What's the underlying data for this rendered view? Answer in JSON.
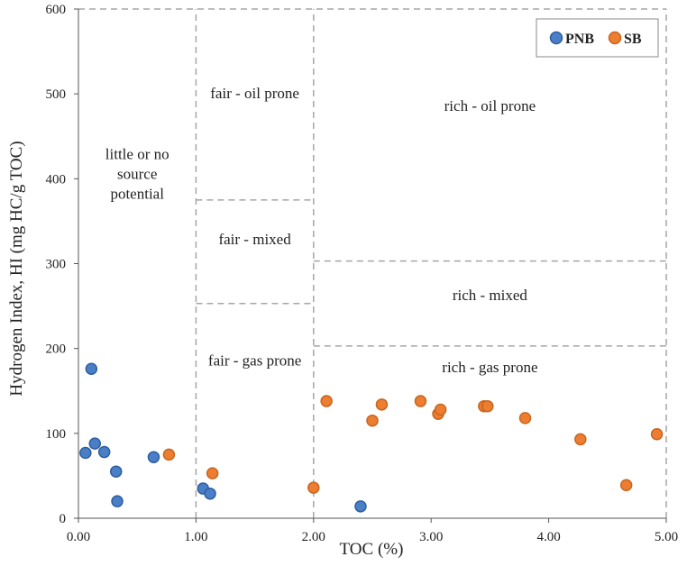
{
  "chart_data": {
    "type": "scatter",
    "xlabel": "TOC (%)",
    "ylabel": "Hydrogen Index, HI (mg HC/g TOC)",
    "xlim": [
      0,
      5
    ],
    "ylim": [
      0,
      600
    ],
    "x_ticks": [
      "0.00",
      "1.00",
      "2.00",
      "3.00",
      "4.00",
      "5.00"
    ],
    "y_ticks": [
      "0",
      "100",
      "200",
      "300",
      "400",
      "500",
      "600"
    ],
    "legend_position": "top-right",
    "series": [
      {
        "name": "PNB",
        "color": "#4a7fc8",
        "points": [
          [
            0.06,
            77
          ],
          [
            0.11,
            176
          ],
          [
            0.14,
            88
          ],
          [
            0.22,
            78
          ],
          [
            0.32,
            55
          ],
          [
            0.33,
            20
          ],
          [
            0.64,
            72
          ],
          [
            1.06,
            35
          ],
          [
            1.12,
            29
          ],
          [
            2.4,
            14
          ]
        ]
      },
      {
        "name": "SB",
        "color": "#ed7d31",
        "points": [
          [
            0.77,
            75
          ],
          [
            1.14,
            53
          ],
          [
            2.0,
            36
          ],
          [
            2.11,
            138
          ],
          [
            2.5,
            115
          ],
          [
            2.58,
            134
          ],
          [
            2.91,
            138
          ],
          [
            3.06,
            123
          ],
          [
            3.08,
            128
          ],
          [
            3.45,
            132
          ],
          [
            3.48,
            132
          ],
          [
            3.8,
            118
          ],
          [
            4.27,
            93
          ],
          [
            4.66,
            39
          ],
          [
            4.92,
            99
          ]
        ]
      }
    ],
    "regions": [
      {
        "label": [
          "little or no",
          "source",
          "potential"
        ],
        "x": 0.5,
        "y": 400
      },
      {
        "label": [
          "fair - oil prone"
        ],
        "x": 1.5,
        "y": 495
      },
      {
        "label": [
          "fair - mixed"
        ],
        "x": 1.5,
        "y": 323
      },
      {
        "label": [
          "fair - gas prone"
        ],
        "x": 1.5,
        "y": 180
      },
      {
        "label": [
          "rich - oil prone"
        ],
        "x": 3.5,
        "y": 480
      },
      {
        "label": [
          "rich - mixed"
        ],
        "x": 3.5,
        "y": 257
      },
      {
        "label": [
          "rich - gas prone"
        ],
        "x": 3.5,
        "y": 172
      }
    ],
    "boundaries": [
      {
        "x1": 0,
        "y1": 600,
        "x2": 5,
        "y2": 600
      },
      {
        "x1": 1,
        "y1": 0,
        "x2": 1,
        "y2": 600
      },
      {
        "x1": 2,
        "y1": 0,
        "x2": 2,
        "y2": 600
      },
      {
        "x1": 5,
        "y1": 0,
        "x2": 5,
        "y2": 600
      },
      {
        "x1": 1,
        "y1": 375,
        "x2": 2,
        "y2": 375
      },
      {
        "x1": 1,
        "y1": 253,
        "x2": 2,
        "y2": 253
      },
      {
        "x1": 2,
        "y1": 303,
        "x2": 5,
        "y2": 303
      },
      {
        "x1": 2,
        "y1": 203,
        "x2": 5,
        "y2": 203
      }
    ]
  }
}
